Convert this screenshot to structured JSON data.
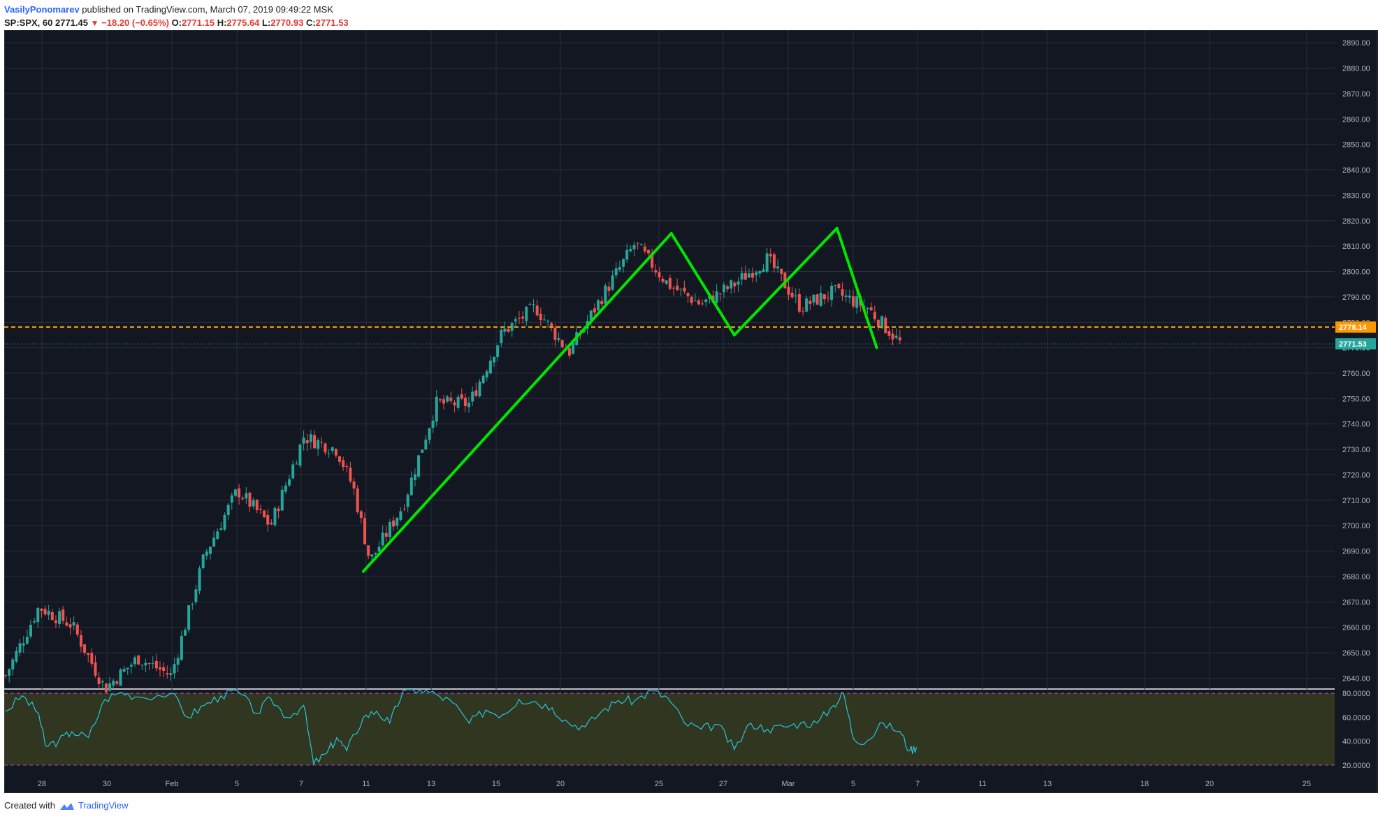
{
  "header": {
    "author": "VasilyPonomarev",
    "published_text": "published on TradingView.com, March 07, 2019 09:49:22 MSK",
    "symbol": "SP:SPX, 60",
    "last": "2771.45",
    "change": "−18.20 (−0.65%)",
    "o_label": "O:",
    "o_value": "2771.15",
    "h_label": "H:",
    "h_value": "2775.64",
    "l_label": "L:",
    "l_value": "2770.93",
    "c_label": "C:",
    "c_value": "2771.53"
  },
  "footer": {
    "created_with": "Created with",
    "brand": "TradingView"
  },
  "colors": {
    "background": "#131722",
    "grid": "#2a2e39",
    "up": "#26a69a",
    "down": "#ef5350",
    "pattern_line": "#00e600",
    "level_line": "#ff9800",
    "last_price": "#26a69a",
    "rsi_line": "#26c6da",
    "rsi_band": "#343a20",
    "rsi_bound": "#c050c0"
  },
  "chart_data": [
    {
      "type": "candlestick",
      "title": "SP:SPX, 60",
      "x_tick_labels": [
        "28",
        "30",
        "Feb",
        "5",
        "7",
        "11",
        "13",
        "15",
        "20",
        "25",
        "27",
        "Mar",
        "5",
        "7",
        "11",
        "13",
        "18",
        "20",
        "25"
      ],
      "y_tick_labels": [
        "2890.00",
        "2880.00",
        "2870.00",
        "2860.00",
        "2850.00",
        "2840.00",
        "2830.00",
        "2820.00",
        "2810.00",
        "2800.00",
        "2790.00",
        "2780.00",
        "2770.00",
        "2760.00",
        "2750.00",
        "2740.00",
        "2730.00",
        "2720.00",
        "2710.00",
        "2700.00",
        "2690.00",
        "2680.00",
        "2670.00",
        "2660.00",
        "2650.00",
        "2640.00"
      ],
      "ylim": [
        2636,
        2895
      ],
      "price_points": [
        {
          "t": 0,
          "p": 2641
        },
        {
          "t": 1,
          "p": 2668
        },
        {
          "t": 2,
          "p": 2661
        },
        {
          "t": 3,
          "p": 2636
        },
        {
          "t": 4,
          "p": 2648
        },
        {
          "t": 5,
          "p": 2641
        },
        {
          "t": 6,
          "p": 2688
        },
        {
          "t": 7,
          "p": 2714
        },
        {
          "t": 8,
          "p": 2700
        },
        {
          "t": 9,
          "p": 2735
        },
        {
          "t": 10,
          "p": 2730
        },
        {
          "t": 10.5,
          "p": 2715
        },
        {
          "t": 11,
          "p": 2686
        },
        {
          "t": 12,
          "p": 2708
        },
        {
          "t": 13,
          "p": 2748
        },
        {
          "t": 14,
          "p": 2748
        },
        {
          "t": 15,
          "p": 2776
        },
        {
          "t": 16,
          "p": 2786
        },
        {
          "t": 17,
          "p": 2768
        },
        {
          "t": 18,
          "p": 2790
        },
        {
          "t": 19,
          "p": 2811
        },
        {
          "t": 20,
          "p": 2795
        },
        {
          "t": 21,
          "p": 2787
        },
        {
          "t": 22,
          "p": 2795
        },
        {
          "t": 23,
          "p": 2805
        },
        {
          "t": 24,
          "p": 2786
        },
        {
          "t": 25,
          "p": 2792
        },
        {
          "t": 26,
          "p": 2786
        },
        {
          "t": 27,
          "p": 2772
        }
      ],
      "candle_count": 250,
      "horizontal_levels": [
        {
          "value": 2778.14,
          "label": "2778.14",
          "style": "dashed",
          "color": "#ff9800"
        },
        {
          "value": 2771.53,
          "label": "2771.53",
          "style": "dotted",
          "color": "#26a69a"
        }
      ],
      "pattern_lines": [
        {
          "from": {
            "t": 10.8,
            "p": 2682
          },
          "to": {
            "t": 20.1,
            "p": 2815
          }
        },
        {
          "from": {
            "t": 20.1,
            "p": 2815
          },
          "to": {
            "t": 22.0,
            "p": 2775
          }
        },
        {
          "from": {
            "t": 22.0,
            "p": 2775
          },
          "to": {
            "t": 25.1,
            "p": 2817
          }
        },
        {
          "from": {
            "t": 25.1,
            "p": 2817
          },
          "to": {
            "t": 26.3,
            "p": 2770
          }
        }
      ]
    },
    {
      "type": "line",
      "title": "RSI",
      "y_tick_labels": [
        "80.0000",
        "60.0000",
        "40.0000",
        "20.0000"
      ],
      "ylim": [
        17,
        83
      ],
      "overbought": 80,
      "oversold": 20,
      "rsi_points": [
        {
          "t": 0,
          "v": 65
        },
        {
          "t": 0.5,
          "v": 78
        },
        {
          "t": 1,
          "v": 63
        },
        {
          "t": 1.2,
          "v": 36
        },
        {
          "t": 1.6,
          "v": 40
        },
        {
          "t": 2,
          "v": 48
        },
        {
          "t": 2.5,
          "v": 43
        },
        {
          "t": 3,
          "v": 75
        },
        {
          "t": 3.5,
          "v": 81
        },
        {
          "t": 4,
          "v": 77
        },
        {
          "t": 5,
          "v": 80
        },
        {
          "t": 5.5,
          "v": 60
        },
        {
          "t": 6,
          "v": 70
        },
        {
          "t": 6.5,
          "v": 78
        },
        {
          "t": 7,
          "v": 82
        },
        {
          "t": 7.6,
          "v": 63
        },
        {
          "t": 8,
          "v": 76
        },
        {
          "t": 8.5,
          "v": 60
        },
        {
          "t": 9,
          "v": 70
        },
        {
          "t": 9.3,
          "v": 21
        },
        {
          "t": 9.7,
          "v": 30
        },
        {
          "t": 10,
          "v": 43
        },
        {
          "t": 10.3,
          "v": 32
        },
        {
          "t": 10.8,
          "v": 60
        },
        {
          "t": 11.2,
          "v": 65
        },
        {
          "t": 11.6,
          "v": 55
        },
        {
          "t": 12,
          "v": 82
        },
        {
          "t": 12.5,
          "v": 83
        },
        {
          "t": 13,
          "v": 79
        },
        {
          "t": 13.5,
          "v": 72
        },
        {
          "t": 14,
          "v": 55
        },
        {
          "t": 14.5,
          "v": 66
        },
        {
          "t": 15,
          "v": 62
        },
        {
          "t": 15.5,
          "v": 75
        },
        {
          "t": 16,
          "v": 73
        },
        {
          "t": 16.5,
          "v": 68
        },
        {
          "t": 17,
          "v": 55
        },
        {
          "t": 17.5,
          "v": 52
        },
        {
          "t": 18,
          "v": 65
        },
        {
          "t": 18.5,
          "v": 74
        },
        {
          "t": 19,
          "v": 74
        },
        {
          "t": 19.5,
          "v": 82
        },
        {
          "t": 20,
          "v": 76
        },
        {
          "t": 20.5,
          "v": 55
        },
        {
          "t": 21,
          "v": 50
        },
        {
          "t": 21.5,
          "v": 54
        },
        {
          "t": 22,
          "v": 33
        },
        {
          "t": 22.5,
          "v": 55
        },
        {
          "t": 23,
          "v": 50
        },
        {
          "t": 23.5,
          "v": 52
        },
        {
          "t": 24,
          "v": 55
        },
        {
          "t": 24.5,
          "v": 55
        },
        {
          "t": 25,
          "v": 70
        },
        {
          "t": 25.3,
          "v": 80
        },
        {
          "t": 25.6,
          "v": 42
        },
        {
          "t": 26,
          "v": 40
        },
        {
          "t": 26.5,
          "v": 55
        },
        {
          "t": 27,
          "v": 48
        },
        {
          "t": 27.3,
          "v": 32
        },
        {
          "t": 27.5,
          "v": 35
        }
      ]
    }
  ]
}
